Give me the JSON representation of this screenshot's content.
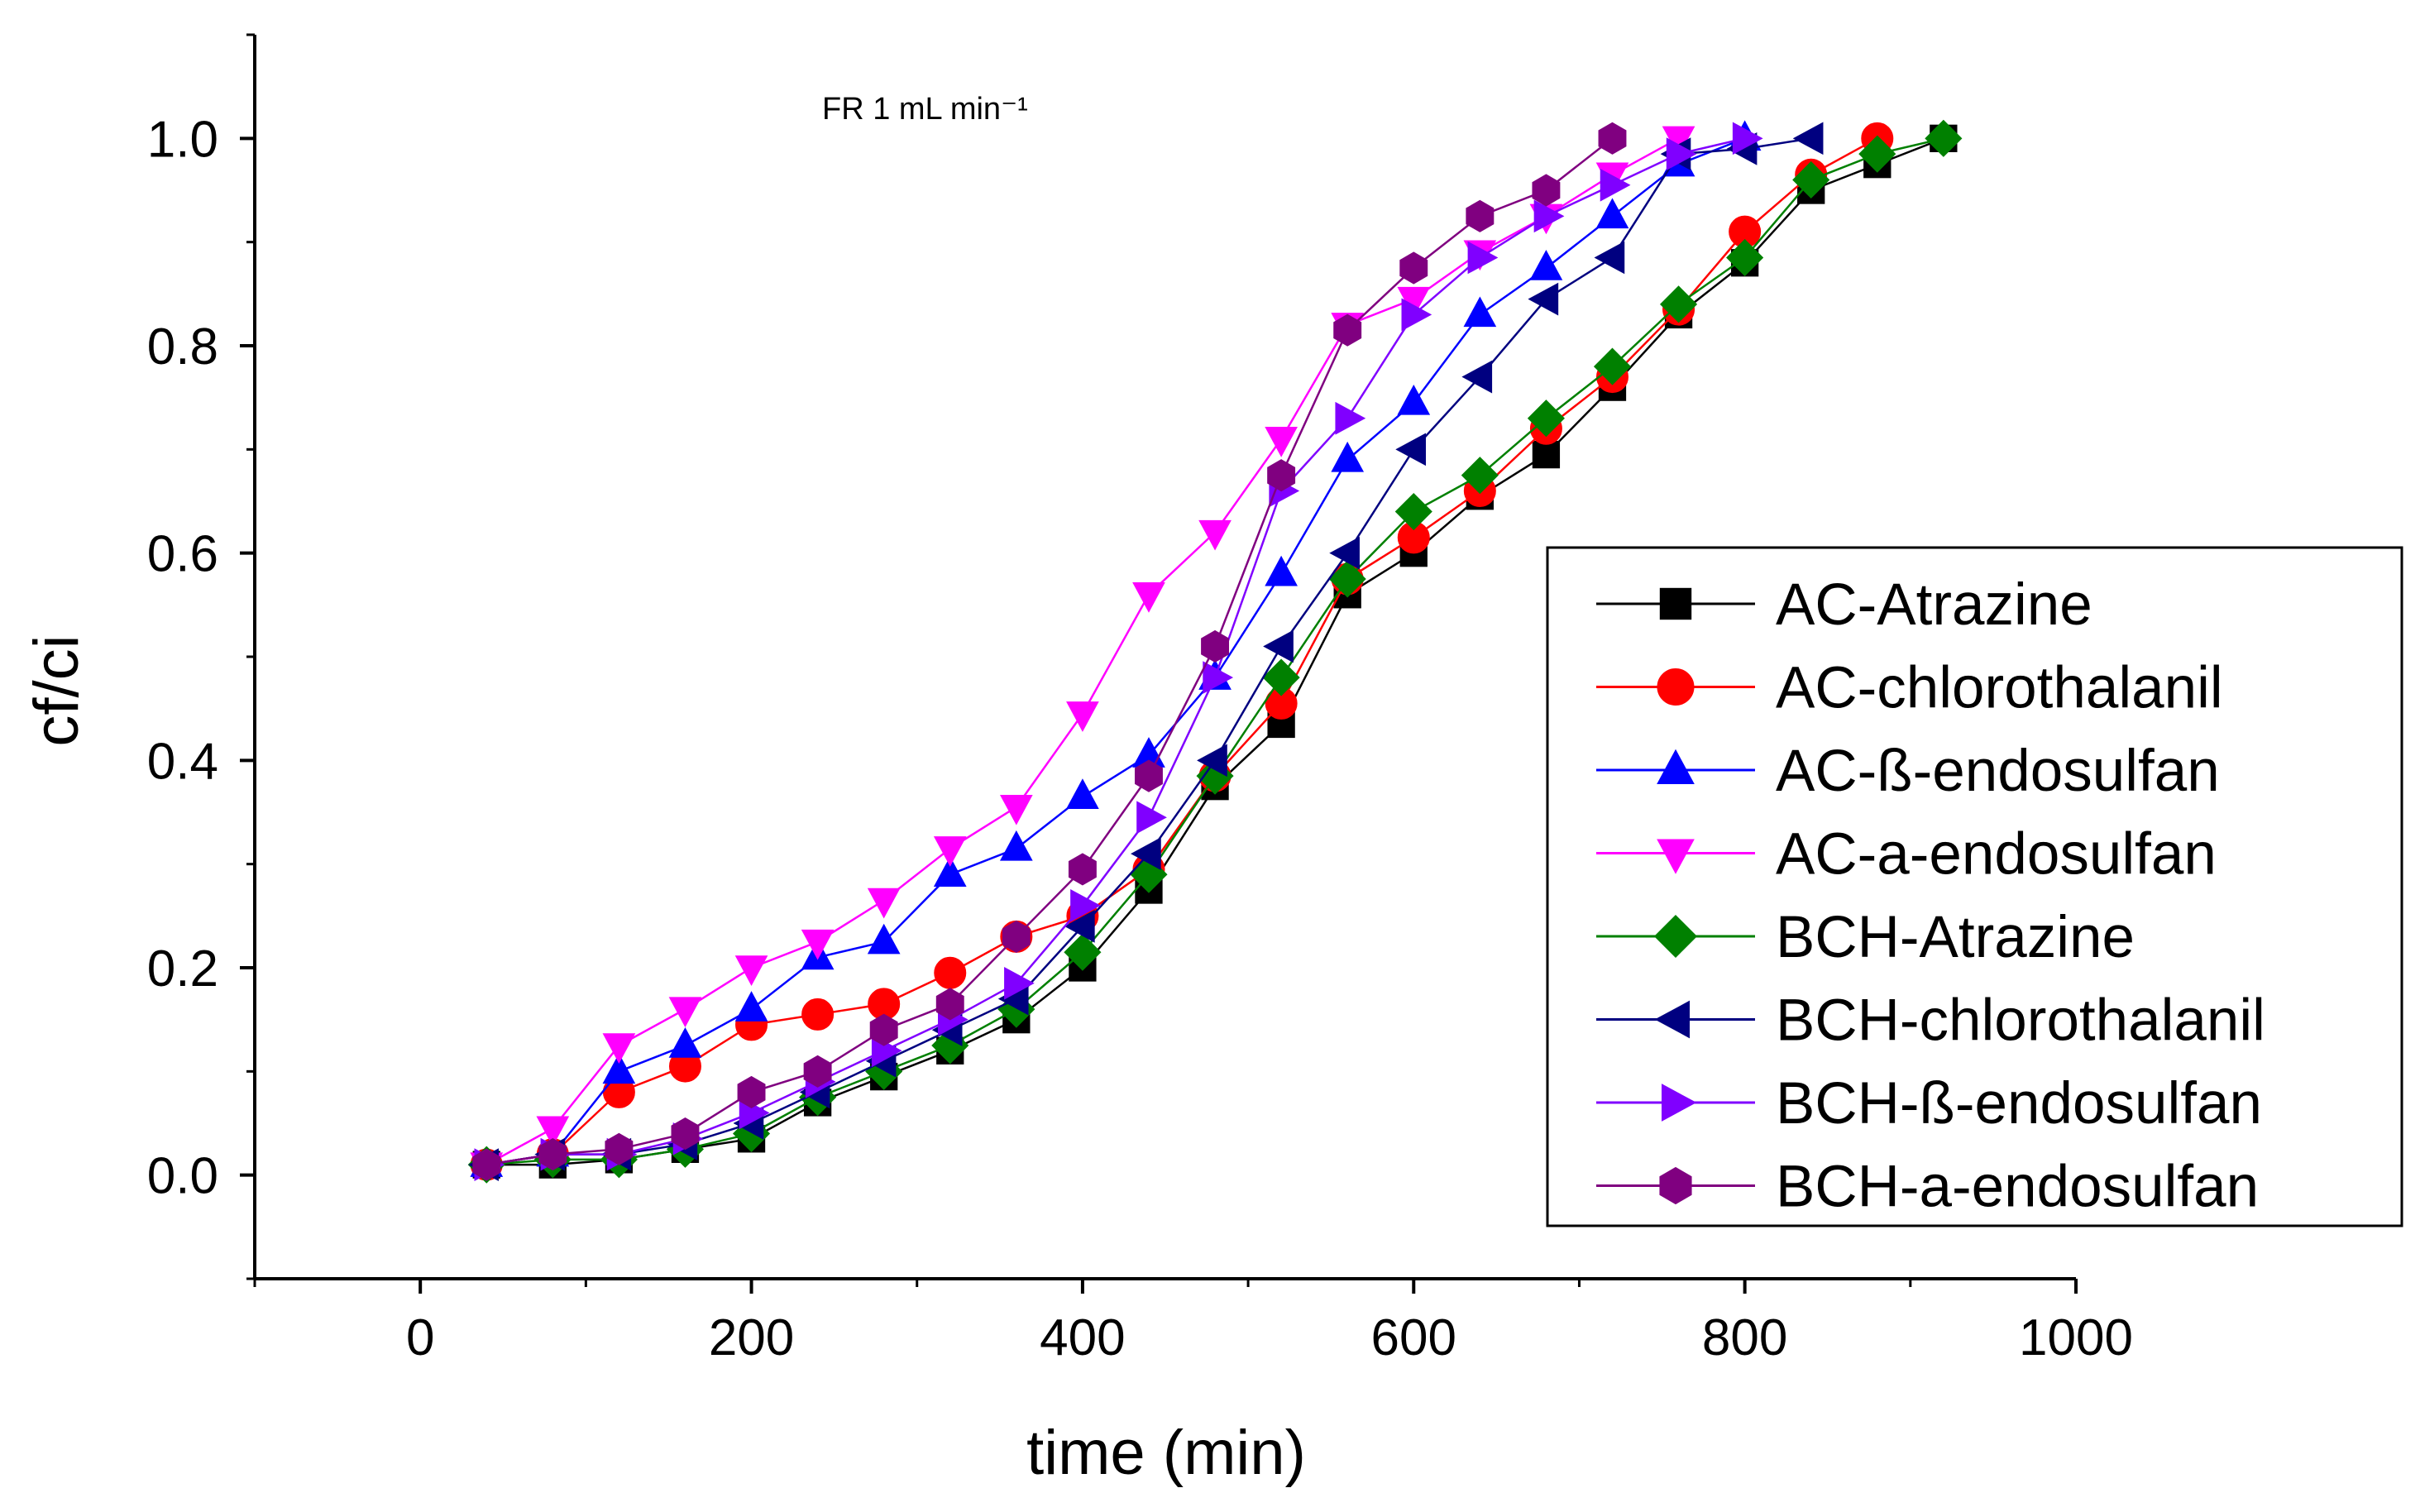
{
  "chart_data": {
    "type": "line",
    "title": "",
    "annotation": "FR 1 mL min⁻¹",
    "xlabel": "time (min)",
    "ylabel": "cf/ci",
    "xlim": [
      -100,
      1000
    ],
    "ylim": [
      -0.1,
      1.1
    ],
    "xticks": [
      0,
      200,
      400,
      600,
      800,
      1000
    ],
    "yticks": [
      0.0,
      0.2,
      0.4,
      0.6,
      0.8,
      1.0
    ],
    "xtick_labels": [
      "0",
      "200",
      "400",
      "600",
      "800",
      "1000"
    ],
    "ytick_labels": [
      "0.0",
      "0.2",
      "0.4",
      "0.6",
      "0.8",
      "1.0"
    ],
    "legend_position": "right",
    "series": [
      {
        "name": "AC-Atrazine",
        "color": "#000000",
        "marker": "square",
        "x": [
          40,
          80,
          120,
          160,
          200,
          240,
          280,
          320,
          360,
          400,
          440,
          480,
          520,
          560,
          600,
          640,
          680,
          720,
          760,
          800,
          840,
          880,
          920
        ],
        "y": [
          0.01,
          0.01,
          0.015,
          0.025,
          0.035,
          0.07,
          0.095,
          0.12,
          0.15,
          0.2,
          0.275,
          0.375,
          0.435,
          0.56,
          0.6,
          0.655,
          0.695,
          0.76,
          0.83,
          0.88,
          0.95,
          0.975,
          1.0
        ]
      },
      {
        "name": "AC-chlorothalanil",
        "color": "#ff0000",
        "marker": "circle",
        "x": [
          40,
          80,
          120,
          160,
          200,
          240,
          280,
          320,
          360,
          400,
          440,
          480,
          520,
          560,
          600,
          640,
          680,
          720,
          760,
          800,
          840,
          880
        ],
        "y": [
          0.01,
          0.02,
          0.08,
          0.105,
          0.145,
          0.155,
          0.165,
          0.195,
          0.23,
          0.25,
          0.295,
          0.385,
          0.455,
          0.575,
          0.615,
          0.66,
          0.72,
          0.77,
          0.835,
          0.91,
          0.965,
          1.0
        ]
      },
      {
        "name": "AC-ß-endosulfan",
        "color": "#0000ff",
        "marker": "triangle-up",
        "x": [
          40,
          80,
          120,
          160,
          200,
          240,
          280,
          320,
          360,
          400,
          440,
          480,
          520,
          560,
          600,
          640,
          680,
          720,
          760,
          800
        ],
        "y": [
          0.01,
          0.02,
          0.1,
          0.125,
          0.16,
          0.21,
          0.225,
          0.29,
          0.315,
          0.365,
          0.405,
          0.48,
          0.58,
          0.69,
          0.745,
          0.83,
          0.875,
          0.925,
          0.975,
          1.0
        ]
      },
      {
        "name": "AC-a-endosulfan",
        "color": "#ff00ff",
        "marker": "triangle-down",
        "x": [
          40,
          80,
          120,
          160,
          200,
          240,
          280,
          320,
          360,
          400,
          440,
          480,
          520,
          560,
          600,
          640,
          680,
          720,
          760
        ],
        "y": [
          0.01,
          0.045,
          0.125,
          0.16,
          0.2,
          0.225,
          0.265,
          0.315,
          0.355,
          0.445,
          0.56,
          0.62,
          0.71,
          0.82,
          0.845,
          0.89,
          0.925,
          0.965,
          1.0
        ]
      },
      {
        "name": "BCH-Atrazine",
        "color": "#008000",
        "marker": "diamond",
        "x": [
          40,
          80,
          120,
          160,
          200,
          240,
          280,
          320,
          360,
          400,
          440,
          480,
          520,
          560,
          600,
          640,
          680,
          720,
          760,
          800,
          840,
          880,
          920
        ],
        "y": [
          0.01,
          0.015,
          0.015,
          0.025,
          0.04,
          0.075,
          0.1,
          0.125,
          0.16,
          0.215,
          0.29,
          0.385,
          0.48,
          0.575,
          0.64,
          0.675,
          0.73,
          0.78,
          0.84,
          0.885,
          0.96,
          0.985,
          1.0
        ]
      },
      {
        "name": "BCH-chlorothalanil",
        "color": "#000080",
        "marker": "triangle-left",
        "x": [
          40,
          80,
          120,
          160,
          200,
          240,
          280,
          320,
          360,
          400,
          440,
          480,
          520,
          560,
          600,
          640,
          680,
          720,
          760,
          800,
          840
        ],
        "y": [
          0.01,
          0.02,
          0.02,
          0.03,
          0.05,
          0.08,
          0.11,
          0.14,
          0.17,
          0.24,
          0.31,
          0.4,
          0.51,
          0.6,
          0.7,
          0.77,
          0.845,
          0.885,
          0.985,
          0.99,
          1.0
        ]
      },
      {
        "name": "BCH-ß-endosulfan",
        "color": "#8000ff",
        "marker": "triangle-right",
        "x": [
          40,
          80,
          120,
          160,
          200,
          240,
          280,
          320,
          360,
          400,
          440,
          480,
          520,
          560,
          600,
          640,
          680,
          720,
          760,
          800
        ],
        "y": [
          0.01,
          0.02,
          0.02,
          0.035,
          0.06,
          0.09,
          0.12,
          0.15,
          0.185,
          0.26,
          0.345,
          0.48,
          0.66,
          0.73,
          0.83,
          0.885,
          0.925,
          0.955,
          0.985,
          1.0
        ]
      },
      {
        "name": "BCH-a-endosulfan",
        "color": "#800080",
        "marker": "hexagon",
        "x": [
          40,
          80,
          120,
          160,
          200,
          240,
          280,
          320,
          360,
          400,
          440,
          480,
          520,
          560,
          600,
          640,
          680,
          720
        ],
        "y": [
          0.01,
          0.02,
          0.025,
          0.04,
          0.08,
          0.1,
          0.14,
          0.165,
          0.23,
          0.295,
          0.385,
          0.51,
          0.675,
          0.815,
          0.875,
          0.925,
          0.95,
          1.0
        ]
      }
    ]
  }
}
